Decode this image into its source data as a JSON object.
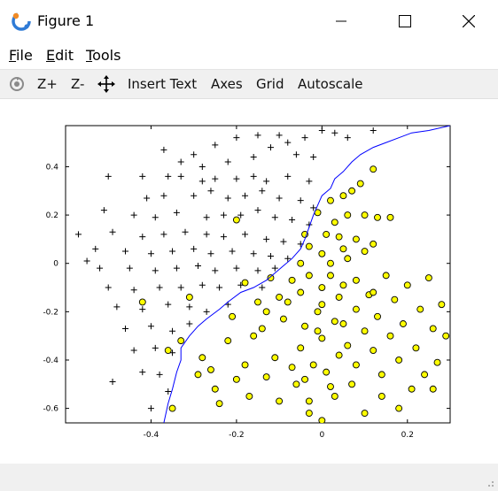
{
  "window": {
    "title": "Figure 1"
  },
  "menu": {
    "file": "File",
    "edit": "Edit",
    "tools": "Tools"
  },
  "toolbar": {
    "zoom_in": "Z+",
    "zoom_out": "Z-",
    "insert_text": "Insert Text",
    "axes": "Axes",
    "grid": "Grid",
    "autoscale": "Autoscale"
  },
  "chart_data": {
    "type": "scatter",
    "xlim": [
      -0.6,
      0.3
    ],
    "ylim": [
      -0.66,
      0.57
    ],
    "x_ticks": [
      -0.4,
      -0.2,
      0,
      0.2
    ],
    "x_tick_labels": [
      "-0.4",
      "-0.2",
      "0",
      "0.2"
    ],
    "y_ticks": [
      0.4,
      0.2,
      0,
      -0.2,
      -0.4,
      -0.6
    ],
    "y_tick_labels": [
      "0.4",
      "0.2",
      "0",
      "-0.2",
      "-0.4",
      "-0.6"
    ],
    "colors": {
      "positive": "#000000",
      "negative_fill": "#ffff00",
      "boundary": "#0000ff"
    },
    "positive_points": [
      [
        -0.42,
        0.36
      ],
      [
        -0.36,
        0.36
      ],
      [
        -0.33,
        0.36
      ],
      [
        -0.28,
        0.34
      ],
      [
        -0.25,
        0.35
      ],
      [
        -0.2,
        0.35
      ],
      [
        -0.16,
        0.36
      ],
      [
        -0.13,
        0.34
      ],
      [
        -0.08,
        0.36
      ],
      [
        -0.03,
        0.34
      ],
      [
        -0.41,
        0.27
      ],
      [
        -0.37,
        0.28
      ],
      [
        -0.3,
        0.28
      ],
      [
        -0.26,
        0.3
      ],
      [
        -0.22,
        0.27
      ],
      [
        -0.18,
        0.28
      ],
      [
        -0.14,
        0.3
      ],
      [
        -0.1,
        0.27
      ],
      [
        -0.05,
        0.26
      ],
      [
        -0.02,
        0.23
      ],
      [
        -0.44,
        0.2
      ],
      [
        -0.39,
        0.19
      ],
      [
        -0.34,
        0.21
      ],
      [
        -0.27,
        0.19
      ],
      [
        -0.23,
        0.2
      ],
      [
        -0.19,
        0.2
      ],
      [
        -0.15,
        0.22
      ],
      [
        -0.11,
        0.19
      ],
      [
        -0.07,
        0.18
      ],
      [
        -0.03,
        0.16
      ],
      [
        -0.49,
        0.13
      ],
      [
        -0.42,
        0.11
      ],
      [
        -0.37,
        0.12
      ],
      [
        -0.32,
        0.13
      ],
      [
        -0.27,
        0.12
      ],
      [
        -0.23,
        0.11
      ],
      [
        -0.18,
        0.12
      ],
      [
        -0.13,
        0.1
      ],
      [
        -0.09,
        0.09
      ],
      [
        -0.05,
        0.08
      ],
      [
        -0.53,
        0.06
      ],
      [
        -0.46,
        0.05
      ],
      [
        -0.4,
        0.04
      ],
      [
        -0.35,
        0.05
      ],
      [
        -0.3,
        0.06
      ],
      [
        -0.26,
        0.04
      ],
      [
        -0.21,
        0.05
      ],
      [
        -0.16,
        0.04
      ],
      [
        -0.12,
        0.03
      ],
      [
        -0.08,
        0.02
      ],
      [
        -0.52,
        -0.02
      ],
      [
        -0.45,
        -0.02
      ],
      [
        -0.39,
        -0.03
      ],
      [
        -0.34,
        -0.02
      ],
      [
        -0.29,
        -0.01
      ],
      [
        -0.25,
        -0.03
      ],
      [
        -0.2,
        -0.02
      ],
      [
        -0.15,
        -0.03
      ],
      [
        -0.11,
        -0.02
      ],
      [
        -0.5,
        -0.1
      ],
      [
        -0.44,
        -0.11
      ],
      [
        -0.38,
        -0.1
      ],
      [
        -0.33,
        -0.1
      ],
      [
        -0.28,
        -0.09
      ],
      [
        -0.24,
        -0.1
      ],
      [
        -0.19,
        -0.09
      ],
      [
        -0.14,
        -0.1
      ],
      [
        -0.48,
        -0.18
      ],
      [
        -0.42,
        -0.19
      ],
      [
        -0.36,
        -0.17
      ],
      [
        -0.31,
        -0.18
      ],
      [
        -0.27,
        -0.2
      ],
      [
        -0.22,
        -0.17
      ],
      [
        -0.46,
        -0.27
      ],
      [
        -0.4,
        -0.26
      ],
      [
        -0.35,
        -0.28
      ],
      [
        -0.31,
        -0.25
      ],
      [
        -0.44,
        -0.36
      ],
      [
        -0.39,
        -0.35
      ],
      [
        -0.35,
        -0.37
      ],
      [
        -0.42,
        -0.45
      ],
      [
        -0.38,
        -0.46
      ],
      [
        -0.36,
        -0.53
      ],
      [
        -0.4,
        -0.6
      ],
      [
        -0.49,
        -0.49
      ],
      [
        -0.57,
        0.12
      ],
      [
        -0.55,
        0.01
      ],
      [
        -0.51,
        0.22
      ],
      [
        -0.5,
        0.36
      ],
      [
        -0.37,
        0.47
      ],
      [
        -0.3,
        0.45
      ],
      [
        -0.22,
        0.42
      ],
      [
        -0.16,
        0.44
      ],
      [
        -0.12,
        0.48
      ],
      [
        -0.08,
        0.5
      ],
      [
        -0.04,
        0.52
      ],
      [
        0.0,
        0.55
      ],
      [
        0.03,
        0.54
      ],
      [
        -0.25,
        0.49
      ],
      [
        -0.2,
        0.52
      ],
      [
        -0.15,
        0.53
      ],
      [
        -0.1,
        0.53
      ],
      [
        -0.06,
        0.45
      ],
      [
        -0.02,
        0.44
      ],
      [
        0.06,
        0.52
      ],
      [
        0.12,
        0.55
      ],
      [
        -0.33,
        0.42
      ],
      [
        -0.28,
        0.4
      ]
    ],
    "negative_points": [
      [
        -0.42,
        -0.16
      ],
      [
        -0.36,
        -0.36
      ],
      [
        -0.35,
        -0.6
      ],
      [
        -0.33,
        -0.32
      ],
      [
        -0.31,
        -0.14
      ],
      [
        -0.29,
        -0.46
      ],
      [
        -0.28,
        -0.39
      ],
      [
        -0.26,
        -0.44
      ],
      [
        -0.25,
        -0.52
      ],
      [
        -0.24,
        -0.58
      ],
      [
        -0.22,
        -0.32
      ],
      [
        -0.21,
        -0.22
      ],
      [
        -0.2,
        -0.48
      ],
      [
        -0.18,
        -0.42
      ],
      [
        -0.17,
        -0.55
      ],
      [
        -0.16,
        -0.3
      ],
      [
        -0.14,
        -0.27
      ],
      [
        -0.13,
        -0.47
      ],
      [
        -0.11,
        -0.39
      ],
      [
        -0.1,
        -0.57
      ],
      [
        -0.09,
        -0.23
      ],
      [
        -0.08,
        -0.16
      ],
      [
        -0.07,
        -0.43
      ],
      [
        -0.06,
        -0.5
      ],
      [
        -0.05,
        -0.35
      ],
      [
        -0.04,
        -0.48
      ],
      [
        -0.03,
        -0.57
      ],
      [
        -0.02,
        -0.42
      ],
      [
        -0.01,
        -0.2
      ],
      [
        0.0,
        -0.31
      ],
      [
        0.01,
        -0.45
      ],
      [
        0.02,
        -0.51
      ],
      [
        0.03,
        -0.55
      ],
      [
        0.04,
        -0.38
      ],
      [
        0.05,
        -0.25
      ],
      [
        0.06,
        -0.34
      ],
      [
        0.07,
        -0.5
      ],
      [
        0.08,
        -0.42
      ],
      [
        0.1,
        -0.28
      ],
      [
        0.11,
        -0.13
      ],
      [
        0.12,
        -0.36
      ],
      [
        0.13,
        -0.22
      ],
      [
        0.14,
        -0.46
      ],
      [
        0.15,
        -0.05
      ],
      [
        0.16,
        -0.3
      ],
      [
        0.17,
        -0.15
      ],
      [
        0.18,
        -0.4
      ],
      [
        0.19,
        -0.25
      ],
      [
        0.2,
        -0.09
      ],
      [
        0.21,
        -0.52
      ],
      [
        0.22,
        -0.35
      ],
      [
        0.23,
        -0.19
      ],
      [
        0.24,
        -0.46
      ],
      [
        0.25,
        -0.06
      ],
      [
        0.26,
        -0.27
      ],
      [
        0.27,
        -0.41
      ],
      [
        0.28,
        -0.17
      ],
      [
        0.29,
        -0.3
      ],
      [
        0.12,
        0.39
      ],
      [
        0.09,
        0.33
      ],
      [
        0.07,
        0.3
      ],
      [
        0.05,
        0.28
      ],
      [
        0.02,
        0.26
      ],
      [
        -0.01,
        0.21
      ],
      [
        0.03,
        0.17
      ],
      [
        0.06,
        0.2
      ],
      [
        0.1,
        0.2
      ],
      [
        0.13,
        0.19
      ],
      [
        0.16,
        0.19
      ],
      [
        0.01,
        0.12
      ],
      [
        0.04,
        0.11
      ],
      [
        0.08,
        0.1
      ],
      [
        0.12,
        0.08
      ],
      [
        -0.03,
        0.07
      ],
      [
        0.0,
        0.04
      ],
      [
        0.05,
        0.06
      ],
      [
        0.1,
        0.05
      ],
      [
        -0.05,
        0.0
      ],
      [
        0.02,
        0.0
      ],
      [
        0.06,
        0.02
      ],
      [
        -0.07,
        -0.07
      ],
      [
        -0.03,
        -0.05
      ],
      [
        0.02,
        -0.05
      ],
      [
        0.05,
        -0.09
      ],
      [
        0.08,
        -0.07
      ],
      [
        0.12,
        -0.12
      ],
      [
        -0.12,
        -0.06
      ],
      [
        -0.1,
        -0.14
      ],
      [
        -0.05,
        -0.12
      ],
      [
        0.0,
        -0.1
      ],
      [
        0.04,
        -0.14
      ],
      [
        -0.18,
        -0.08
      ],
      [
        -0.15,
        -0.16
      ],
      [
        -0.13,
        -0.2
      ],
      [
        0.0,
        -0.17
      ],
      [
        0.03,
        -0.24
      ],
      [
        -0.04,
        -0.26
      ],
      [
        -0.01,
        -0.28
      ],
      [
        0.08,
        -0.19
      ],
      [
        0.0,
        -0.65
      ],
      [
        -0.03,
        -0.62
      ],
      [
        0.1,
        -0.62
      ],
      [
        0.14,
        -0.55
      ],
      [
        -0.2,
        0.18
      ],
      [
        -0.04,
        0.12
      ],
      [
        0.18,
        -0.6
      ],
      [
        0.26,
        -0.52
      ]
    ],
    "boundary": [
      [
        -0.37,
        -0.66
      ],
      [
        -0.36,
        -0.58
      ],
      [
        -0.35,
        -0.52
      ],
      [
        -0.34,
        -0.45
      ],
      [
        -0.33,
        -0.4
      ],
      [
        -0.33,
        -0.35
      ],
      [
        -0.31,
        -0.3
      ],
      [
        -0.29,
        -0.26
      ],
      [
        -0.27,
        -0.23
      ],
      [
        -0.24,
        -0.19
      ],
      [
        -0.22,
        -0.16
      ],
      [
        -0.19,
        -0.12
      ],
      [
        -0.16,
        -0.1
      ],
      [
        -0.13,
        -0.07
      ],
      [
        -0.11,
        -0.04
      ],
      [
        -0.09,
        -0.01
      ],
      [
        -0.07,
        0.02
      ],
      [
        -0.05,
        0.06
      ],
      [
        -0.04,
        0.1
      ],
      [
        -0.03,
        0.15
      ],
      [
        -0.02,
        0.2
      ],
      [
        -0.01,
        0.24
      ],
      [
        0.0,
        0.28
      ],
      [
        0.02,
        0.31
      ],
      [
        0.03,
        0.35
      ],
      [
        0.05,
        0.38
      ],
      [
        0.07,
        0.42
      ],
      [
        0.09,
        0.45
      ],
      [
        0.12,
        0.48
      ],
      [
        0.15,
        0.5
      ],
      [
        0.18,
        0.52
      ],
      [
        0.21,
        0.54
      ],
      [
        0.25,
        0.55
      ],
      [
        0.3,
        0.57
      ]
    ]
  }
}
